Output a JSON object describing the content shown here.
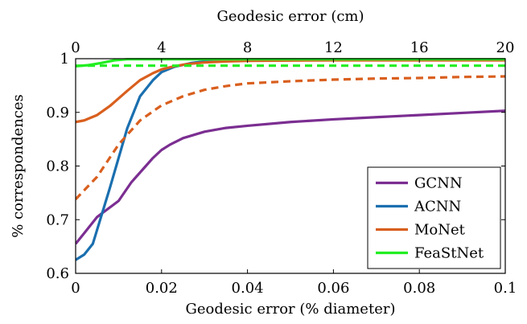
{
  "chart_data": {
    "type": "line",
    "xlabel": "Geodesic error (% diameter)",
    "ylabel": "% correspondences",
    "top_xlabel": "Geodesic error (cm)",
    "xlim": [
      0,
      0.1
    ],
    "ylim": [
      0.6,
      1.0
    ],
    "top_xlim": [
      0,
      20
    ],
    "xticks": [
      0,
      0.02,
      0.04,
      0.06,
      0.08,
      0.1
    ],
    "xtick_labels": [
      "0",
      "0.02",
      "0.04",
      "0.06",
      "0.08",
      "0.1"
    ],
    "yticks": [
      0.6,
      0.7,
      0.8,
      0.9,
      1.0
    ],
    "ytick_labels": [
      "0.6",
      "0.7",
      "0.8",
      "0.9",
      "1"
    ],
    "top_xticks": [
      0,
      4,
      8,
      12,
      16,
      20
    ],
    "top_xtick_labels": [
      "0",
      "4",
      "8",
      "12",
      "16",
      "20"
    ],
    "grid": false,
    "legend_position": "bottom-right",
    "series": [
      {
        "name": "GCNN",
        "color": "#7b2e91",
        "dash": "solid",
        "in_legend": true,
        "x": [
          0,
          0.002,
          0.005,
          0.01,
          0.013,
          0.016,
          0.018,
          0.02,
          0.022,
          0.025,
          0.03,
          0.035,
          0.04,
          0.05,
          0.06,
          0.07,
          0.08,
          0.09,
          0.1
        ],
        "y": [
          0.655,
          0.675,
          0.705,
          0.735,
          0.77,
          0.797,
          0.815,
          0.83,
          0.84,
          0.852,
          0.864,
          0.871,
          0.875,
          0.882,
          0.887,
          0.891,
          0.895,
          0.899,
          0.903
        ]
      },
      {
        "name": "ACNN",
        "color": "#1a6faf",
        "dash": "solid",
        "in_legend": true,
        "x": [
          0,
          0.002,
          0.004,
          0.008,
          0.012,
          0.015,
          0.018,
          0.02,
          0.023,
          0.027,
          0.03,
          0.035,
          0.04,
          0.06,
          0.08,
          0.1
        ],
        "y": [
          0.625,
          0.635,
          0.655,
          0.76,
          0.87,
          0.93,
          0.96,
          0.975,
          0.985,
          0.992,
          0.995,
          0.996,
          0.997,
          0.998,
          0.998,
          0.998
        ]
      },
      {
        "name": "MoNet",
        "color": "#d95f1e",
        "dash": "solid",
        "in_legend": true,
        "x": [
          0,
          0.002,
          0.005,
          0.008,
          0.012,
          0.015,
          0.018,
          0.02,
          0.023,
          0.026,
          0.03,
          0.035,
          0.04,
          0.06,
          0.08,
          0.1
        ],
        "y": [
          0.882,
          0.885,
          0.895,
          0.912,
          0.94,
          0.96,
          0.973,
          0.98,
          0.986,
          0.99,
          0.993,
          0.995,
          0.996,
          0.997,
          0.997,
          0.997
        ]
      },
      {
        "name": "MoNet",
        "color": "#d95f1e",
        "dash": "dashed",
        "in_legend": false,
        "x": [
          0,
          0.005,
          0.01,
          0.015,
          0.02,
          0.025,
          0.03,
          0.035,
          0.04,
          0.05,
          0.06,
          0.07,
          0.08,
          0.09,
          0.1
        ],
        "y": [
          0.738,
          0.78,
          0.84,
          0.885,
          0.913,
          0.93,
          0.942,
          0.949,
          0.954,
          0.958,
          0.961,
          0.963,
          0.964,
          0.966,
          0.967
        ]
      },
      {
        "name": "FeaStNet",
        "color": "#22ee22",
        "dash": "solid",
        "in_legend": true,
        "x": [
          0,
          0.003,
          0.006,
          0.009,
          0.012,
          0.02,
          0.04,
          0.06,
          0.08,
          0.1
        ],
        "y": [
          0.986,
          0.988,
          0.992,
          0.997,
          0.999,
          0.999,
          0.999,
          0.999,
          0.999,
          0.999
        ]
      },
      {
        "name": "FeaStNet",
        "color": "#22ee22",
        "dash": "dashed",
        "in_legend": false,
        "x": [
          0,
          0.02,
          0.04,
          0.06,
          0.08,
          0.1
        ],
        "y": [
          0.987,
          0.987,
          0.987,
          0.987,
          0.987,
          0.987
        ]
      }
    ]
  }
}
